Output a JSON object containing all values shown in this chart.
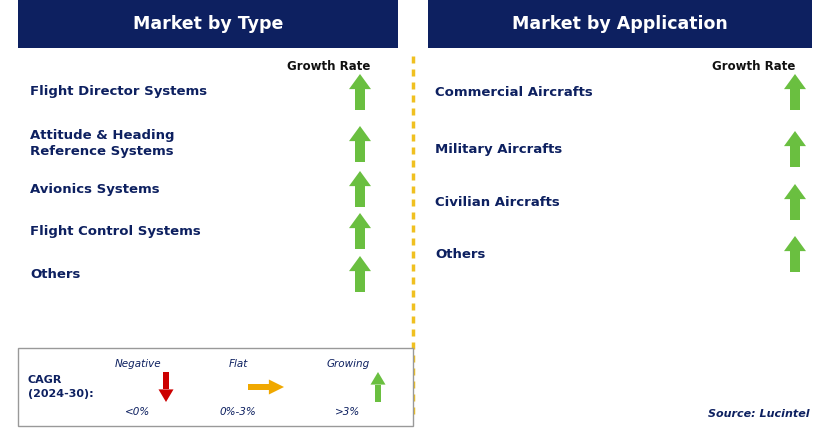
{
  "left_title": "Market by Type",
  "right_title": "Market by Application",
  "header_bg_color": "#0d2060",
  "header_text_color": "#ffffff",
  "growth_rate_label": "Growth Rate",
  "left_items": [
    "Flight Director Systems",
    "Attitude & Heading\nReference Systems",
    "Avionics Systems",
    "Flight Control Systems",
    "Others"
  ],
  "right_items": [
    "Commercial Aircrafts",
    "Military Aircrafts",
    "Civilian Aircrafts",
    "Others"
  ],
  "item_text_color": "#0d2060",
  "divider_color": "#f0c020",
  "green_arrow_color": "#6abf40",
  "red_arrow_color": "#cc0000",
  "orange_arrow_color": "#f0a800",
  "legend_cagr_label": "CAGR\n(2024-30):",
  "legend_negative_label": "Negative",
  "legend_negative_sublabel": "<0%",
  "legend_flat_label": "Flat",
  "legend_flat_sublabel": "0%-3%",
  "legend_growing_label": "Growing",
  "legend_growing_sublabel": ">3%",
  "source_text": "Source: Lucintel",
  "bg_color": "#ffffff",
  "fig_width": 8.29,
  "fig_height": 4.44,
  "dpi": 100
}
